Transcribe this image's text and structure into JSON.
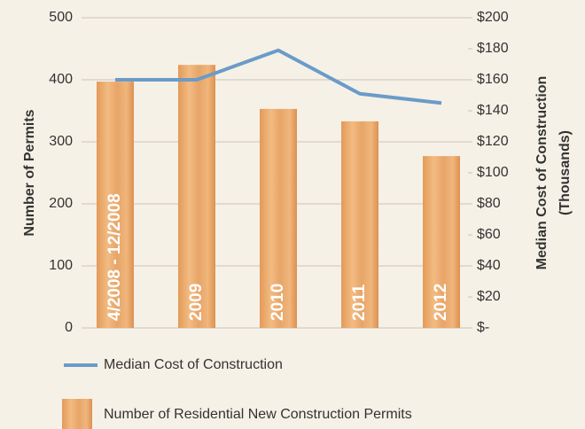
{
  "chart_data": {
    "type": "bar",
    "categories": [
      "4/2008 - 12/2008",
      "2009",
      "2010",
      "2011",
      "2012"
    ],
    "series": [
      {
        "name": "Number of Residential New Construction Permits",
        "type": "bar",
        "color": "#e9a86a",
        "values": [
          397,
          424,
          353,
          333,
          277
        ]
      },
      {
        "name": "Median Cost of Construction",
        "type": "line",
        "axis": "y2",
        "color": "#6b9bc8",
        "values": [
          160,
          160,
          179,
          151,
          145
        ]
      }
    ],
    "ylabel": "Number of Permits",
    "y2label": [
      "Median Cost of Construction",
      "(Thousands)"
    ],
    "ylim": [
      0,
      500
    ],
    "yticks": [
      0,
      100,
      200,
      300,
      400,
      500
    ],
    "y2lim": [
      0,
      200
    ],
    "y2ticks": [
      {
        "value": 0,
        "label": "$-"
      },
      {
        "value": 20,
        "label": "$20"
      },
      {
        "value": 40,
        "label": "$40"
      },
      {
        "value": 60,
        "label": "$60"
      },
      {
        "value": 80,
        "label": "$80"
      },
      {
        "value": 100,
        "label": "$100"
      },
      {
        "value": 120,
        "label": "$120"
      },
      {
        "value": 140,
        "label": "$140"
      },
      {
        "value": 160,
        "label": "$160"
      },
      {
        "value": 180,
        "label": "$180"
      },
      {
        "value": 200,
        "label": "$200"
      }
    ],
    "grid": true
  }
}
